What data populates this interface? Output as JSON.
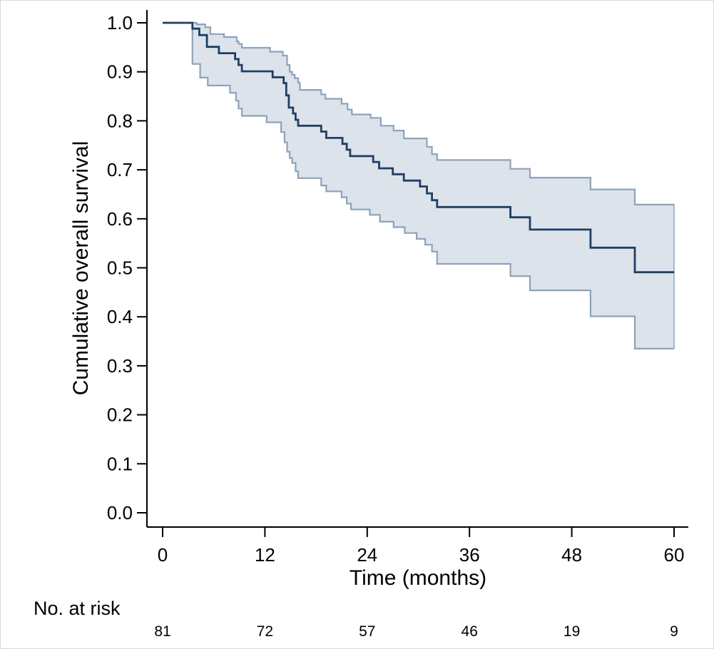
{
  "chart_data": {
    "type": "line",
    "title": "",
    "xlabel": "Time (months)",
    "ylabel": "Cumulative overall survival",
    "xlim": [
      0,
      60
    ],
    "ylim": [
      0,
      1
    ],
    "x_ticks": [
      0,
      12,
      24,
      36,
      48,
      60
    ],
    "x_tick_labels": [
      "0",
      "12",
      "24",
      "36",
      "48",
      "60"
    ],
    "y_ticks": [
      0,
      0.1,
      0.2,
      0.3,
      0.4,
      0.5,
      0.6,
      0.7,
      0.8,
      0.9,
      1.0
    ],
    "y_tick_labels": [
      "0.0",
      "0.1",
      "0.2",
      "0.3",
      "0.4",
      "0.5",
      "0.6",
      "0.7",
      "0.8",
      "0.9",
      "1.0"
    ],
    "grid": false,
    "legend": "none",
    "colors": {
      "survival": "#1f3f63",
      "ci_band": "#dde3eb",
      "ci_line": "#8da3ba"
    },
    "series": [
      {
        "style": "step",
        "points": [
          [
            0,
            1.0
          ],
          [
            3.5,
            0.988
          ],
          [
            4.3,
            0.975
          ],
          [
            5.2,
            0.951
          ],
          [
            6.6,
            0.938
          ],
          [
            8.5,
            0.926
          ],
          [
            8.9,
            0.914
          ],
          [
            9.3,
            0.901
          ],
          [
            12.9,
            0.889
          ],
          [
            14.2,
            0.877
          ],
          [
            14.5,
            0.852
          ],
          [
            14.8,
            0.827
          ],
          [
            15.3,
            0.815
          ],
          [
            15.6,
            0.802
          ],
          [
            15.9,
            0.79
          ],
          [
            18.6,
            0.778
          ],
          [
            19.2,
            0.765
          ],
          [
            21.1,
            0.753
          ],
          [
            21.6,
            0.741
          ],
          [
            22.0,
            0.728
          ],
          [
            24.7,
            0.716
          ],
          [
            25.4,
            0.703
          ],
          [
            27.0,
            0.691
          ],
          [
            28.3,
            0.678
          ],
          [
            30.2,
            0.666
          ],
          [
            31.0,
            0.652
          ],
          [
            31.6,
            0.638
          ],
          [
            32.2,
            0.624
          ],
          [
            40.8,
            0.603
          ],
          [
            43.1,
            0.578
          ],
          [
            50.2,
            0.541
          ],
          [
            55.4,
            0.491
          ],
          [
            60,
            0.491
          ]
        ]
      },
      {
        "style": "step",
        "role": "upper_ci",
        "points": [
          [
            0,
            1.0
          ],
          [
            4.0,
            0.997
          ],
          [
            5.0,
            0.991
          ],
          [
            5.6,
            0.977
          ],
          [
            7.2,
            0.971
          ],
          [
            8.7,
            0.962
          ],
          [
            8.9,
            0.957
          ],
          [
            9.3,
            0.949
          ],
          [
            12.6,
            0.941
          ],
          [
            14.1,
            0.933
          ],
          [
            14.6,
            0.914
          ],
          [
            14.9,
            0.9
          ],
          [
            15.2,
            0.894
          ],
          [
            15.5,
            0.887
          ],
          [
            15.9,
            0.878
          ],
          [
            16.1,
            0.863
          ],
          [
            18.6,
            0.854
          ],
          [
            19.1,
            0.845
          ],
          [
            21.0,
            0.835
          ],
          [
            21.7,
            0.823
          ],
          [
            22.2,
            0.813
          ],
          [
            24.4,
            0.806
          ],
          [
            25.6,
            0.79
          ],
          [
            27.1,
            0.78
          ],
          [
            28.3,
            0.764
          ],
          [
            31.0,
            0.747
          ],
          [
            31.6,
            0.732
          ],
          [
            32.2,
            0.72
          ],
          [
            40.8,
            0.702
          ],
          [
            43.1,
            0.684
          ],
          [
            50.2,
            0.66
          ],
          [
            55.4,
            0.629
          ],
          [
            60,
            0.629
          ]
        ]
      },
      {
        "style": "step",
        "role": "lower_ci",
        "points": [
          [
            0,
            1.0
          ],
          [
            3.5,
            0.916
          ],
          [
            4.4,
            0.888
          ],
          [
            5.3,
            0.872
          ],
          [
            7.9,
            0.857
          ],
          [
            8.6,
            0.841
          ],
          [
            8.9,
            0.825
          ],
          [
            9.3,
            0.81
          ],
          [
            12.2,
            0.797
          ],
          [
            13.9,
            0.777
          ],
          [
            14.3,
            0.756
          ],
          [
            14.6,
            0.737
          ],
          [
            14.9,
            0.724
          ],
          [
            15.2,
            0.714
          ],
          [
            15.6,
            0.697
          ],
          [
            15.9,
            0.683
          ],
          [
            18.6,
            0.668
          ],
          [
            19.2,
            0.656
          ],
          [
            21.0,
            0.644
          ],
          [
            21.6,
            0.631
          ],
          [
            22.1,
            0.619
          ],
          [
            24.3,
            0.608
          ],
          [
            25.5,
            0.594
          ],
          [
            27.1,
            0.583
          ],
          [
            28.4,
            0.571
          ],
          [
            29.8,
            0.559
          ],
          [
            30.8,
            0.547
          ],
          [
            31.6,
            0.533
          ],
          [
            32.2,
            0.508
          ],
          [
            40.8,
            0.483
          ],
          [
            43.1,
            0.454
          ],
          [
            50.2,
            0.401
          ],
          [
            55.4,
            0.335
          ],
          [
            60,
            0.335
          ]
        ]
      }
    ]
  },
  "risk_table": {
    "title": "No. at risk",
    "times": [
      0,
      12,
      24,
      36,
      48,
      60
    ],
    "counts": [
      "81",
      "72",
      "57",
      "46",
      "19",
      "9"
    ]
  }
}
